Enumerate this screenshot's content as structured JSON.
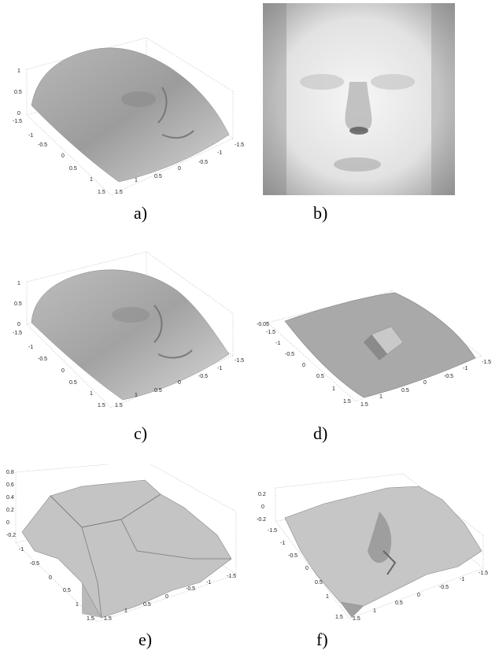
{
  "figure": {
    "panels": [
      {
        "id": "a",
        "caption": "a)",
        "kind": "3d-surface",
        "z_ticks": [
          "1",
          "0.5",
          "0"
        ],
        "y_ticks": [
          "-1.5",
          "-1",
          "-0.5",
          "0",
          "0.5",
          "1",
          "1.5"
        ],
        "x_ticks": [
          "1.5",
          "1",
          "0.5",
          "0",
          "-0.5",
          "-1",
          "-1.5"
        ]
      },
      {
        "id": "b",
        "caption": "b)",
        "kind": "grayscale-image"
      },
      {
        "id": "c",
        "caption": "c)",
        "kind": "3d-surface",
        "z_ticks": [
          "1",
          "0.5",
          "0"
        ],
        "y_ticks": [
          "-1.5",
          "-1",
          "-0.5",
          "0",
          "0.5",
          "1",
          "1.5"
        ],
        "x_ticks": [
          "1.5",
          "1",
          "0.5",
          "0",
          "-0.5",
          "-1",
          "-1.5"
        ]
      },
      {
        "id": "d",
        "caption": "d)",
        "kind": "3d-surface",
        "z_ticks": [
          "-0.05"
        ],
        "y_ticks": [
          "-1.5",
          "-1",
          "-0.5",
          "0",
          "0.5",
          "1",
          "1.5"
        ],
        "x_ticks": [
          "1.5",
          "1",
          "0.5",
          "0",
          "-0.5",
          "-1",
          "-1.5"
        ]
      },
      {
        "id": "e",
        "caption": "e)",
        "kind": "3d-surface",
        "z_ticks": [
          "0.8",
          "0.6",
          "0.4",
          "0.2",
          "0",
          "-0.2"
        ],
        "y_ticks": [
          "-1",
          "-0.5",
          "0",
          "0.5",
          "1",
          "1.5"
        ],
        "x_ticks": [
          "1.5",
          "1",
          "0.5",
          "0",
          "-0.5",
          "-1",
          "-1.5"
        ]
      },
      {
        "id": "f",
        "caption": "f)",
        "kind": "3d-surface",
        "z_ticks": [
          "0.2",
          "0",
          "-0.2"
        ],
        "y_ticks": [
          "-1.5",
          "-1",
          "-0.5",
          "0",
          "0.5",
          "1",
          "1.5"
        ],
        "x_ticks": [
          "1.5",
          "1",
          "0.5",
          "0",
          "-0.5",
          "-1",
          "-1.5"
        ]
      }
    ]
  }
}
